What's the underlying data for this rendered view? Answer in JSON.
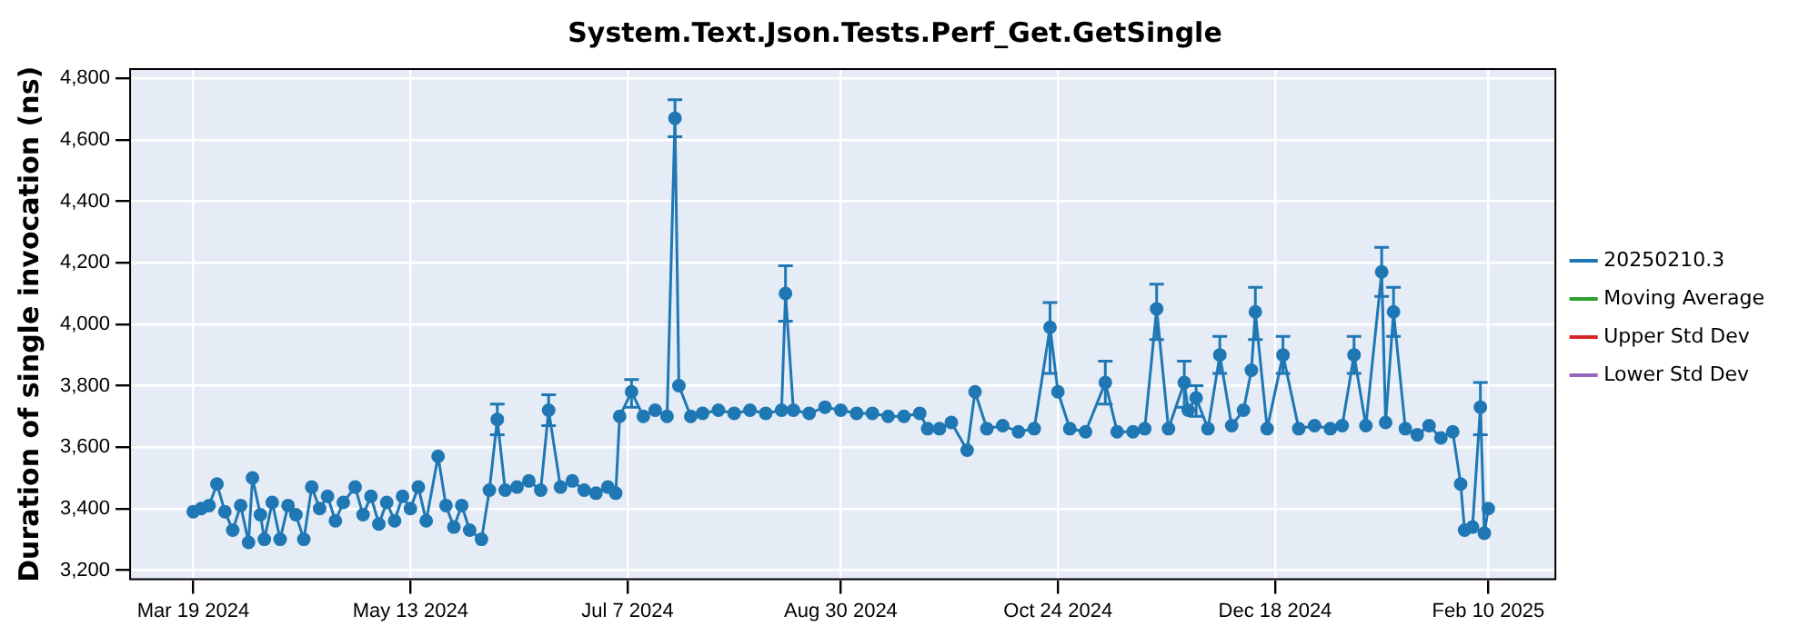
{
  "chart_data": {
    "type": "line",
    "title": "System.Text.Json.Tests.Perf_Get.GetSingle",
    "ylabel": "Duration of single invocation (ns)",
    "xlim": [
      "2024-03-03",
      "2025-02-27"
    ],
    "xticks": [
      {
        "value": "2024-03-19",
        "label": "Mar 19 2024"
      },
      {
        "value": "2024-05-13",
        "label": "May 13 2024"
      },
      {
        "value": "2024-07-07",
        "label": "Jul 7 2024"
      },
      {
        "value": "2024-08-30",
        "label": "Aug 30 2024"
      },
      {
        "value": "2024-10-24",
        "label": "Oct 24 2024"
      },
      {
        "value": "2024-12-18",
        "label": "Dec 18 2024"
      },
      {
        "value": "2025-02-10",
        "label": "Feb 10 2025"
      }
    ],
    "ylim": [
      3170,
      4830
    ],
    "yticks": [
      {
        "value": 3200,
        "label": "3,200"
      },
      {
        "value": 3400,
        "label": "3,400"
      },
      {
        "value": 3600,
        "label": "3,600"
      },
      {
        "value": 3800,
        "label": "3,800"
      },
      {
        "value": 4000,
        "label": "4,000"
      },
      {
        "value": 4200,
        "label": "4,200"
      },
      {
        "value": 4400,
        "label": "4,400"
      },
      {
        "value": 4600,
        "label": "4,600"
      },
      {
        "value": 4800,
        "label": "4,800"
      }
    ],
    "grid": true,
    "legend": "right",
    "marker": "circle",
    "line_style": "solid",
    "series": [
      {
        "name": "20250210.3",
        "color": "#1f77b4",
        "x": [
          "2024-03-19",
          "2024-03-21",
          "2024-03-23",
          "2024-03-25",
          "2024-03-27",
          "2024-03-29",
          "2024-03-31",
          "2024-04-02",
          "2024-04-03",
          "2024-04-05",
          "2024-04-06",
          "2024-04-08",
          "2024-04-10",
          "2024-04-12",
          "2024-04-14",
          "2024-04-16",
          "2024-04-18",
          "2024-04-20",
          "2024-04-22",
          "2024-04-24",
          "2024-04-26",
          "2024-04-29",
          "2024-05-01",
          "2024-05-03",
          "2024-05-05",
          "2024-05-07",
          "2024-05-09",
          "2024-05-11",
          "2024-05-13",
          "2024-05-15",
          "2024-05-17",
          "2024-05-20",
          "2024-05-22",
          "2024-05-24",
          "2024-05-26",
          "2024-05-28",
          "2024-05-31",
          "2024-06-02",
          "2024-06-04",
          "2024-06-06",
          "2024-06-09",
          "2024-06-12",
          "2024-06-15",
          "2024-06-17",
          "2024-06-20",
          "2024-06-23",
          "2024-06-26",
          "2024-06-29",
          "2024-07-02",
          "2024-07-04",
          "2024-07-05",
          "2024-07-08",
          "2024-07-11",
          "2024-07-14",
          "2024-07-17",
          "2024-07-19",
          "2024-07-20",
          "2024-07-23",
          "2024-07-26",
          "2024-07-30",
          "2024-08-03",
          "2024-08-07",
          "2024-08-11",
          "2024-08-15",
          "2024-08-16",
          "2024-08-18",
          "2024-08-22",
          "2024-08-26",
          "2024-08-30",
          "2024-09-03",
          "2024-09-07",
          "2024-09-11",
          "2024-09-15",
          "2024-09-19",
          "2024-09-21",
          "2024-09-24",
          "2024-09-27",
          "2024-10-01",
          "2024-10-03",
          "2024-10-06",
          "2024-10-10",
          "2024-10-14",
          "2024-10-18",
          "2024-10-22",
          "2024-10-24",
          "2024-10-27",
          "2024-10-31",
          "2024-11-05",
          "2024-11-08",
          "2024-11-12",
          "2024-11-15",
          "2024-11-18",
          "2024-11-21",
          "2024-11-25",
          "2024-11-26",
          "2024-11-28",
          "2024-12-01",
          "2024-12-04",
          "2024-12-07",
          "2024-12-10",
          "2024-12-12",
          "2024-12-13",
          "2024-12-16",
          "2024-12-20",
          "2024-12-24",
          "2024-12-28",
          "2025-01-01",
          "2025-01-04",
          "2025-01-07",
          "2025-01-10",
          "2025-01-14",
          "2025-01-15",
          "2025-01-17",
          "2025-01-20",
          "2025-01-23",
          "2025-01-26",
          "2025-01-29",
          "2025-02-01",
          "2025-02-03",
          "2025-02-04",
          "2025-02-06",
          "2025-02-08",
          "2025-02-09",
          "2025-02-10"
        ],
        "values": [
          3390,
          3400,
          3410,
          3480,
          3390,
          3330,
          3410,
          3290,
          3500,
          3380,
          3300,
          3420,
          3300,
          3410,
          3380,
          3300,
          3470,
          3400,
          3440,
          3360,
          3420,
          3470,
          3380,
          3440,
          3350,
          3420,
          3360,
          3440,
          3400,
          3470,
          3360,
          3570,
          3410,
          3340,
          3410,
          3330,
          3300,
          3460,
          3690,
          3460,
          3470,
          3490,
          3460,
          3720,
          3470,
          3490,
          3460,
          3450,
          3470,
          3450,
          3700,
          3780,
          3700,
          3720,
          3700,
          4670,
          3800,
          3700,
          3710,
          3720,
          3710,
          3720,
          3710,
          3720,
          4100,
          3720,
          3710,
          3730,
          3720,
          3710,
          3710,
          3700,
          3700,
          3710,
          3660,
          3660,
          3680,
          3590,
          3780,
          3660,
          3670,
          3650,
          3660,
          3990,
          3780,
          3660,
          3650,
          3810,
          3650,
          3650,
          3660,
          4050,
          3660,
          3810,
          3720,
          3760,
          3660,
          3900,
          3670,
          3720,
          3850,
          4040,
          3660,
          3900,
          3660,
          3670,
          3660,
          3670,
          3900,
          3670,
          4170,
          3680,
          4040,
          3660,
          3640,
          3670,
          3630,
          3650,
          3480,
          3330,
          3340,
          3730,
          3320,
          3400
        ],
        "errors": [
          null,
          null,
          null,
          null,
          null,
          null,
          null,
          null,
          null,
          null,
          null,
          null,
          null,
          null,
          null,
          null,
          null,
          null,
          null,
          null,
          null,
          null,
          null,
          null,
          null,
          null,
          null,
          null,
          null,
          null,
          null,
          null,
          null,
          null,
          null,
          null,
          null,
          null,
          [
            3640,
            3740
          ],
          null,
          null,
          null,
          null,
          [
            3670,
            3770
          ],
          null,
          null,
          null,
          null,
          null,
          null,
          null,
          [
            3730,
            3820
          ],
          null,
          null,
          null,
          [
            4610,
            4730
          ],
          null,
          null,
          null,
          null,
          null,
          null,
          null,
          null,
          [
            4010,
            4190
          ],
          null,
          null,
          null,
          null,
          null,
          null,
          null,
          null,
          null,
          null,
          null,
          null,
          null,
          null,
          null,
          null,
          null,
          null,
          [
            3840,
            4070
          ],
          null,
          null,
          null,
          [
            3740,
            3880
          ],
          null,
          null,
          null,
          [
            3950,
            4130
          ],
          null,
          [
            3730,
            3880
          ],
          null,
          [
            3700,
            3800
          ],
          null,
          [
            3840,
            3960
          ],
          null,
          null,
          null,
          [
            3950,
            4120
          ],
          null,
          [
            3840,
            3960
          ],
          null,
          null,
          null,
          null,
          [
            3840,
            3960
          ],
          null,
          [
            4090,
            4250
          ],
          null,
          [
            3960,
            4120
          ],
          null,
          null,
          null,
          null,
          null,
          null,
          null,
          null,
          [
            3640,
            3810
          ],
          null,
          null
        ]
      },
      {
        "name": "Moving Average",
        "color": "#2ca02c"
      },
      {
        "name": "Upper Std Dev",
        "color": "#d62728"
      },
      {
        "name": "Lower Std Dev",
        "color": "#9467bd"
      }
    ]
  }
}
